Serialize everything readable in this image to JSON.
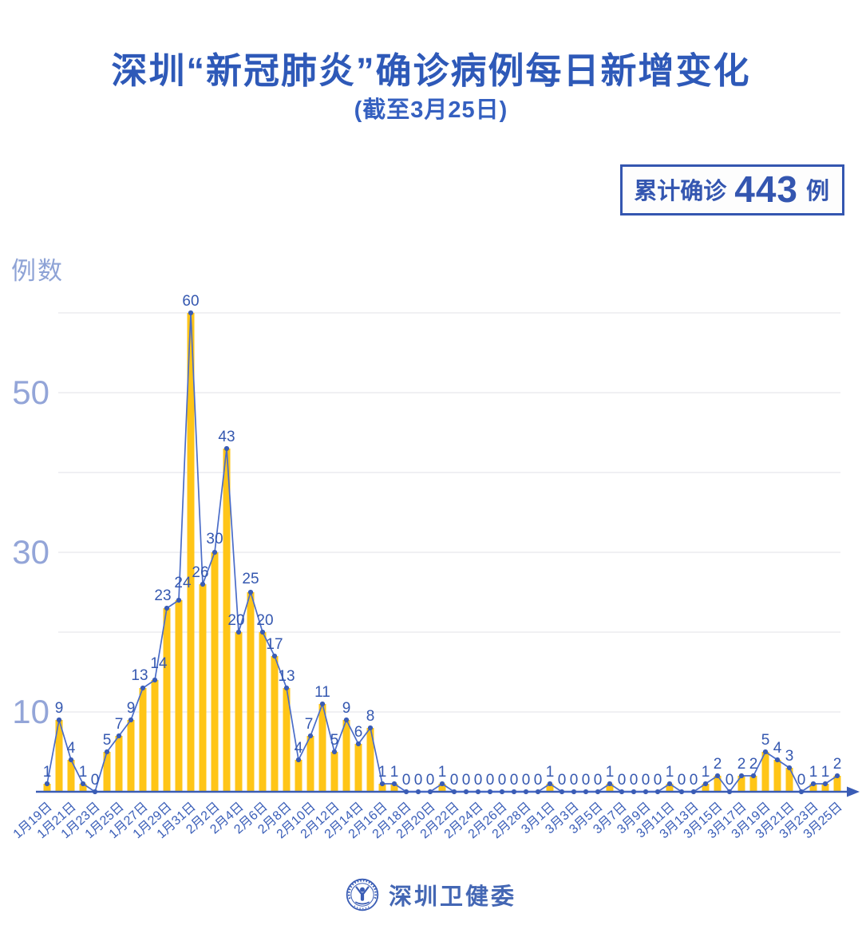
{
  "header": {
    "title": "深圳“新冠肺炎”确诊病例每日新增变化",
    "subtitle": "(截至3月25日)"
  },
  "badge": {
    "prefix": "累计确诊",
    "value": "443",
    "suffix": "例"
  },
  "y_axis_title": "例数",
  "footer": {
    "org": "深圳卫健委",
    "logo": "shenzhen-health-commission-emblem"
  },
  "colors": {
    "title_blue": "#2e59b8",
    "badge_blue": "#3456b0",
    "bar": "#ffc517",
    "line": "#4a6cc8",
    "marker": "#3a5cb5",
    "value_label": "#3558b0",
    "axis": "#3a5cb5",
    "xtick": "#3a5eb8",
    "ytick": "#93a5d8",
    "grid": "#e8e8ec",
    "footer_blue": "#4467b4"
  },
  "chart_data": {
    "type": "bar",
    "line_overlay": true,
    "title": "深圳“新冠肺炎”确诊病例每日新增变化",
    "subtitle": "(截至3月25日)",
    "xlabel": "",
    "ylabel": "例数",
    "ylim": [
      0,
      62
    ],
    "yticks_labeled": [
      10,
      30,
      50
    ],
    "gridlines": [
      10,
      20,
      30,
      40,
      50,
      60
    ],
    "x_tick_every": 2,
    "legend_position": "none",
    "cumulative_total": 443,
    "categories": [
      "1月19日",
      "1月20日",
      "1月21日",
      "1月22日",
      "1月23日",
      "1月24日",
      "1月25日",
      "1月26日",
      "1月27日",
      "1月28日",
      "1月29日",
      "1月30日",
      "1月31日",
      "2月1日",
      "2月2日",
      "2月3日",
      "2月4日",
      "2月5日",
      "2月6日",
      "2月7日",
      "2月8日",
      "2月9日",
      "2月10日",
      "2月11日",
      "2月12日",
      "2月13日",
      "2月14日",
      "2月15日",
      "2月16日",
      "2月17日",
      "2月18日",
      "2月19日",
      "2月20日",
      "2月21日",
      "2月22日",
      "2月23日",
      "2月24日",
      "2月25日",
      "2月26日",
      "2月27日",
      "2月28日",
      "2月29日",
      "3月1日",
      "3月2日",
      "3月3日",
      "3月4日",
      "3月5日",
      "3月6日",
      "3月7日",
      "3月8日",
      "3月9日",
      "3月10日",
      "3月11日",
      "3月12日",
      "3月13日",
      "3月14日",
      "3月15日",
      "3月16日",
      "3月17日",
      "3月18日",
      "3月19日",
      "3月20日",
      "3月21日",
      "3月22日",
      "3月23日",
      "3月24日",
      "3月25日"
    ],
    "values": [
      1,
      9,
      4,
      1,
      0,
      5,
      7,
      9,
      13,
      14,
      23,
      24,
      60,
      26,
      30,
      43,
      20,
      25,
      20,
      17,
      13,
      4,
      7,
      11,
      5,
      9,
      6,
      8,
      1,
      1,
      0,
      0,
      0,
      1,
      0,
      0,
      0,
      0,
      0,
      0,
      0,
      0,
      1,
      0,
      0,
      0,
      0,
      1,
      0,
      0,
      0,
      0,
      1,
      0,
      0,
      1,
      2,
      0,
      2,
      2,
      5,
      4,
      3,
      0,
      1,
      1,
      2
    ]
  }
}
